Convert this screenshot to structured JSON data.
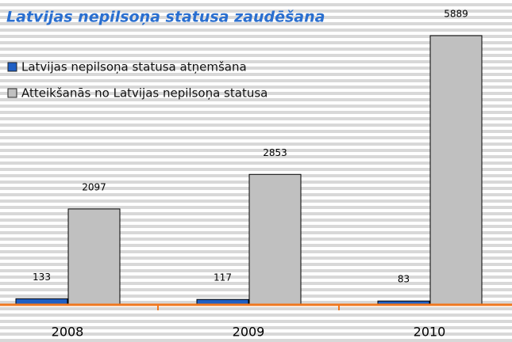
{
  "chart_data": {
    "type": "bar",
    "title": "Latvijas nepilsoņa statusa zaudēšana",
    "categories": [
      "2008",
      "2009",
      "2010"
    ],
    "series": [
      {
        "name": "Latvijas nepilsoņa statusa atņemšana",
        "color": "#1f5fc4",
        "values": [
          133,
          117,
          83
        ]
      },
      {
        "name": "Atteikšanās no Latvijas nepilsoņa statusa",
        "color": "#c0c0c0",
        "values": [
          2097,
          2853,
          5889
        ]
      }
    ],
    "axis_color": "#f07820"
  }
}
